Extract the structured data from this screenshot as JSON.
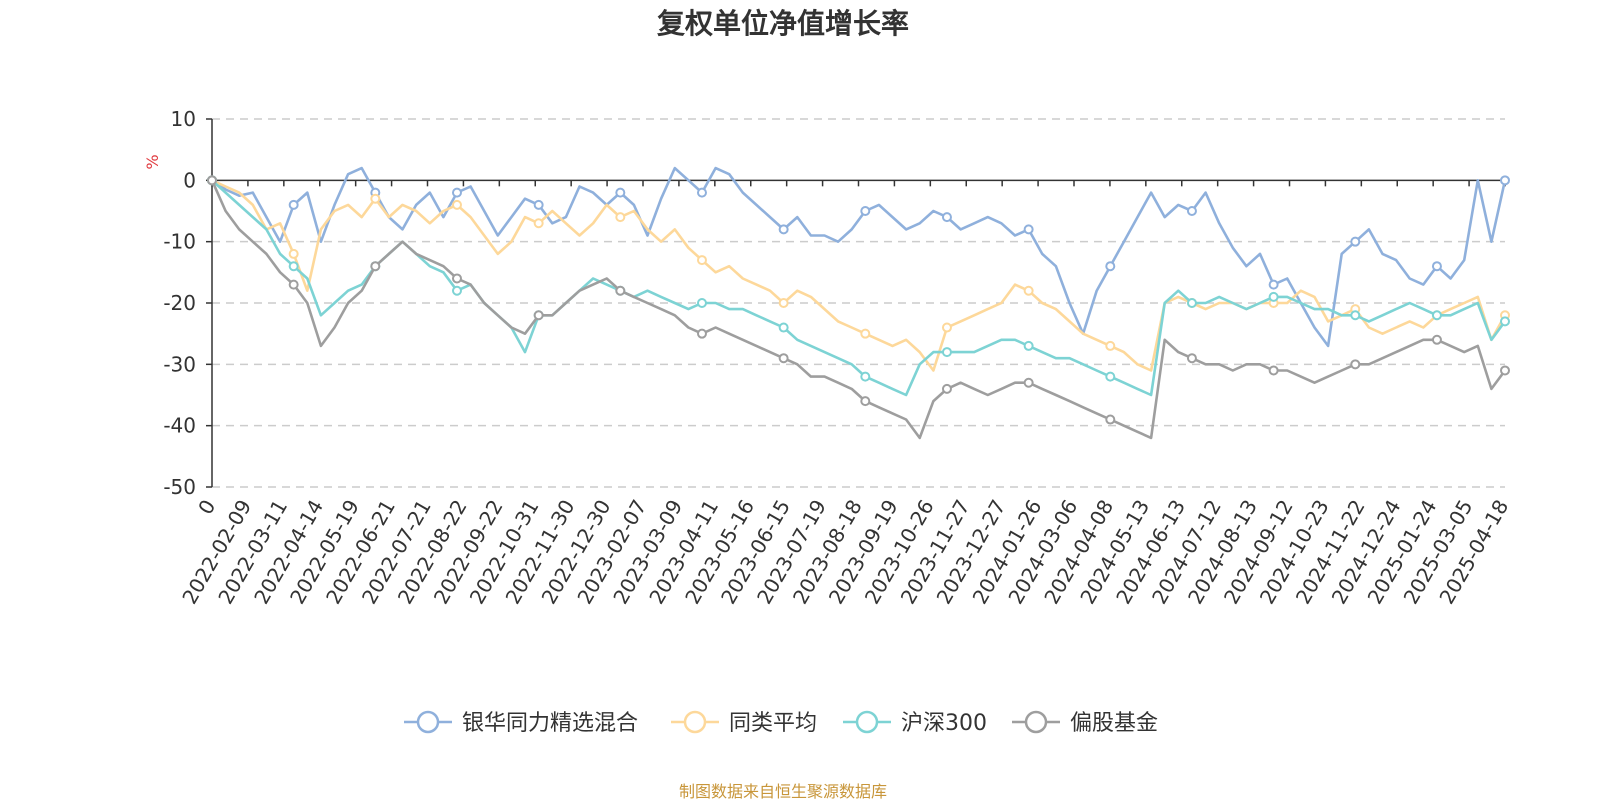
{
  "chart_data": {
    "type": "line",
    "title": "复权单位净值增长率",
    "ylabel": "%",
    "ylim": [
      -50,
      10
    ],
    "yticks": [
      10,
      0,
      -10,
      -20,
      -30,
      -40,
      -50
    ],
    "ytick_labels": [
      "10",
      "0",
      "-10",
      "-20",
      "-30",
      "-40",
      "-50"
    ],
    "xtick_labels": [
      "0",
      "2022-02-09",
      "2022-03-11",
      "2022-04-14",
      "2022-05-19",
      "2022-06-21",
      "2022-07-21",
      "2022-08-22",
      "2022-09-22",
      "2022-10-31",
      "2022-11-30",
      "2022-12-30",
      "2023-02-07",
      "2023-03-09",
      "2023-04-11",
      "2023-05-16",
      "2023-06-15",
      "2023-07-19",
      "2023-08-18",
      "2023-09-19",
      "2023-10-26",
      "2023-11-27",
      "2023-12-27",
      "2024-01-26",
      "2024-03-06",
      "2024-04-08",
      "2024-05-13",
      "2024-06-13",
      "2024-07-12",
      "2024-08-13",
      "2024-09-12",
      "2024-10-23",
      "2024-11-22",
      "2024-12-24",
      "2025-01-24",
      "2025-03-05",
      "2025-04-18"
    ],
    "grid": true,
    "legend_position": "bottom",
    "series": [
      {
        "name": "银华同力精选混合",
        "color": "#8fb0dc",
        "values": [
          0,
          -1.5,
          -2.5,
          -2,
          -6,
          -10,
          -4,
          -2,
          -10,
          -4,
          1,
          2,
          -2,
          -6,
          -8,
          -4,
          -2,
          -6,
          -2,
          -1,
          -5,
          -9,
          -6,
          -3,
          -4,
          -7,
          -6,
          -1,
          -2,
          -4,
          -2,
          -4,
          -9,
          -3,
          2,
          0,
          -2,
          2,
          1,
          -2,
          -4,
          -6,
          -8,
          -6,
          -9,
          -9,
          -10,
          -8,
          -5,
          -4,
          -6,
          -8,
          -7,
          -5,
          -6,
          -8,
          -7,
          -6,
          -7,
          -9,
          -8,
          -12,
          -14,
          -20,
          -25,
          -18,
          -14,
          -10,
          -6,
          -2,
          -6,
          -4,
          -5,
          -2,
          -7,
          -11,
          -14,
          -12,
          -17,
          -16,
          -20,
          -24,
          -27,
          -12,
          -10,
          -8,
          -12,
          -13,
          -16,
          -17,
          -14,
          -16,
          -13,
          0,
          -10,
          0
        ]
      },
      {
        "name": "同类平均",
        "color": "#fdd89a",
        "values": [
          0,
          -1,
          -2,
          -4,
          -8,
          -7,
          -12,
          -18,
          -8,
          -5,
          -4,
          -6,
          -3,
          -6,
          -4,
          -5,
          -7,
          -5,
          -4,
          -6,
          -9,
          -12,
          -10,
          -6,
          -7,
          -5,
          -7,
          -9,
          -7,
          -4,
          -6,
          -5,
          -8,
          -10,
          -8,
          -11,
          -13,
          -15,
          -14,
          -16,
          -17,
          -18,
          -20,
          -18,
          -19,
          -21,
          -23,
          -24,
          -25,
          -26,
          -27,
          -26,
          -28,
          -31,
          -24,
          -23,
          -22,
          -21,
          -20,
          -17,
          -18,
          -20,
          -21,
          -23,
          -25,
          -26,
          -27,
          -28,
          -30,
          -31,
          -20,
          -19,
          -20,
          -21,
          -20,
          -20,
          -21,
          -20,
          -20,
          -20,
          -18,
          -19,
          -23,
          -22,
          -21,
          -24,
          -25,
          -24,
          -23,
          -24,
          -22,
          -21,
          -20,
          -19,
          -26,
          -22
        ]
      },
      {
        "name": "沪深300",
        "color": "#7dd3d4",
        "values": [
          0,
          -2,
          -4,
          -6,
          -8,
          -12,
          -14,
          -16,
          -22,
          -20,
          -18,
          -17,
          -14,
          -12,
          -10,
          -12,
          -14,
          -15,
          -18,
          -17,
          -20,
          -22,
          -24,
          -28,
          -22,
          -22,
          -20,
          -18,
          -16,
          -17,
          -18,
          -19,
          -18,
          -19,
          -20,
          -21,
          -20,
          -20,
          -21,
          -21,
          -22,
          -23,
          -24,
          -26,
          -27,
          -28,
          -29,
          -30,
          -32,
          -33,
          -34,
          -35,
          -30,
          -28,
          -28,
          -28,
          -28,
          -27,
          -26,
          -26,
          -27,
          -28,
          -29,
          -29,
          -30,
          -31,
          -32,
          -33,
          -34,
          -35,
          -20,
          -18,
          -20,
          -20,
          -19,
          -20,
          -21,
          -20,
          -19,
          -19,
          -20,
          -21,
          -21,
          -22,
          -22,
          -23,
          -22,
          -21,
          -20,
          -21,
          -22,
          -22,
          -21,
          -20,
          -26,
          -23
        ]
      },
      {
        "name": "偏股基金",
        "color": "#9e9e9e",
        "values": [
          0,
          -5,
          -8,
          -10,
          -12,
          -15,
          -17,
          -20,
          -27,
          -24,
          -20,
          -18,
          -14,
          -12,
          -10,
          -12,
          -13,
          -14,
          -16,
          -17,
          -20,
          -22,
          -24,
          -25,
          -22,
          -22,
          -20,
          -18,
          -17,
          -16,
          -18,
          -19,
          -20,
          -21,
          -22,
          -24,
          -25,
          -24,
          -25,
          -26,
          -27,
          -28,
          -29,
          -30,
          -32,
          -32,
          -33,
          -34,
          -36,
          -37,
          -38,
          -39,
          -42,
          -36,
          -34,
          -33,
          -34,
          -35,
          -34,
          -33,
          -33,
          -34,
          -35,
          -36,
          -37,
          -38,
          -39,
          -40,
          -41,
          -42,
          -26,
          -28,
          -29,
          -30,
          -30,
          -31,
          -30,
          -30,
          -31,
          -31,
          -32,
          -33,
          -32,
          -31,
          -30,
          -30,
          -29,
          -28,
          -27,
          -26,
          -26,
          -27,
          -28,
          -27,
          -34,
          -31
        ]
      }
    ]
  },
  "source_note": "制图数据来自恒生聚源数据库",
  "colors": {
    "axis": "#333333",
    "grid": "#cccccc",
    "unit": "#e0393e",
    "source": "#c8963a"
  }
}
